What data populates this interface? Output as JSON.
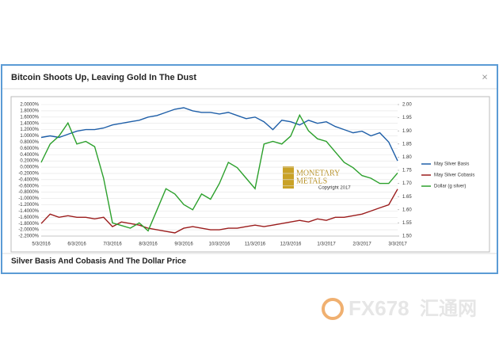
{
  "dialog": {
    "title": "Bitcoin Shoots Up, Leaving Gold In The Dust",
    "close": "×",
    "caption": "Silver Basis And Cobasis And The Dollar Price"
  },
  "logo": {
    "name": "MONETARY",
    "name2": "METALS",
    "copyright": "Copyright 2017"
  },
  "watermark": {
    "brand": "FX678",
    "cn": "汇通网"
  },
  "chart_data": {
    "type": "line",
    "categories": [
      "5/3/2016",
      null,
      null,
      null,
      "6/3/2016",
      null,
      null,
      null,
      "7/3/2016",
      null,
      null,
      null,
      "8/3/2016",
      null,
      null,
      null,
      "9/3/2016",
      null,
      null,
      null,
      "10/3/2016",
      null,
      null,
      null,
      "11/3/2016",
      null,
      null,
      null,
      "12/3/2016",
      null,
      null,
      null,
      "1/3/2017",
      null,
      null,
      null,
      "2/3/2017",
      null,
      null,
      null,
      "3/3/2017"
    ],
    "series": [
      {
        "name": "May Silver Basis",
        "color": "#1f5fa8",
        "axis": "y",
        "values": [
          0.95,
          1.0,
          0.95,
          1.05,
          1.15,
          1.2,
          1.2,
          1.25,
          1.35,
          1.4,
          1.45,
          1.5,
          1.6,
          1.65,
          1.75,
          1.85,
          1.9,
          1.8,
          1.75,
          1.75,
          1.7,
          1.75,
          1.65,
          1.55,
          1.6,
          1.45,
          1.2,
          1.5,
          1.45,
          1.35,
          1.5,
          1.4,
          1.45,
          1.3,
          1.2,
          1.1,
          1.15,
          1.0,
          1.1,
          0.8,
          0.2
        ]
      },
      {
        "name": "May Silver Cobasis",
        "color": "#9b1c1c",
        "axis": "y",
        "values": [
          -1.8,
          -1.5,
          -1.6,
          -1.55,
          -1.6,
          -1.6,
          -1.65,
          -1.6,
          -1.9,
          -1.75,
          -1.8,
          -1.85,
          -1.95,
          -2.0,
          -2.05,
          -2.1,
          -1.95,
          -1.9,
          -1.95,
          -2.0,
          -2.0,
          -1.95,
          -1.95,
          -1.9,
          -1.85,
          -1.9,
          -1.85,
          -1.8,
          -1.75,
          -1.7,
          -1.75,
          -1.65,
          -1.7,
          -1.6,
          -1.6,
          -1.55,
          -1.5,
          -1.4,
          -1.3,
          -1.2,
          -0.7
        ]
      },
      {
        "name": "Dollar (g silver)",
        "color": "#2ca02c",
        "axis": "y2",
        "values": [
          1.78,
          1.85,
          1.88,
          1.93,
          1.85,
          1.86,
          1.84,
          1.72,
          1.55,
          1.54,
          1.53,
          1.55,
          1.52,
          1.6,
          1.68,
          1.66,
          1.62,
          1.6,
          1.66,
          1.64,
          1.7,
          1.78,
          1.76,
          1.72,
          1.68,
          1.85,
          1.86,
          1.85,
          1.88,
          1.96,
          1.9,
          1.87,
          1.86,
          1.82,
          1.78,
          1.76,
          1.73,
          1.72,
          1.7,
          1.7,
          1.74
        ]
      }
    ],
    "ylim": [
      -2.2,
      2.0
    ],
    "yticks": [
      {
        "value": 2.0,
        "label": "2.0000%"
      },
      {
        "value": 1.8,
        "label": "1.8000%"
      },
      {
        "value": 1.6,
        "label": "1.6000%"
      },
      {
        "value": 1.4,
        "label": "1.4000%"
      },
      {
        "value": 1.2,
        "label": "1.2000%"
      },
      {
        "value": 1.0,
        "label": "1.0000%"
      },
      {
        "value": 0.8,
        "label": "0.8000%"
      },
      {
        "value": 0.6,
        "label": "0.6000%"
      },
      {
        "value": 0.4,
        "label": "0.4000%"
      },
      {
        "value": 0.2,
        "label": "0.2000%"
      },
      {
        "value": 0,
        "label": "0.0000%"
      },
      {
        "value": -0.2,
        "label": "-0.2000%"
      },
      {
        "value": -0.4,
        "label": "-0.4000%"
      },
      {
        "value": -0.6,
        "label": "-0.6000%"
      },
      {
        "value": -0.8,
        "label": "-0.8000%"
      },
      {
        "value": -1.0,
        "label": "-1.0000%"
      },
      {
        "value": -1.2,
        "label": "-1.2000%"
      },
      {
        "value": -1.4,
        "label": "-1.4000%"
      },
      {
        "value": -1.6,
        "label": "-1.6000%"
      },
      {
        "value": -1.8,
        "label": "-1.8000%"
      },
      {
        "value": -2.0,
        "label": "-2.0000%"
      },
      {
        "value": -2.2,
        "label": "-2.2000%"
      }
    ],
    "y2lim": [
      1.5,
      2.0
    ],
    "y2ticks": [
      {
        "value": 2.0,
        "label": "2.00"
      },
      {
        "value": 1.95,
        "label": "1.95"
      },
      {
        "value": 1.9,
        "label": "1.90"
      },
      {
        "value": 1.85,
        "label": "1.85"
      },
      {
        "value": 1.8,
        "label": "1.80"
      },
      {
        "value": 1.75,
        "label": "1.75"
      },
      {
        "value": 1.7,
        "label": "1.70"
      },
      {
        "value": 1.65,
        "label": "1.65"
      },
      {
        "value": 1.6,
        "label": "1.60"
      },
      {
        "value": 1.55,
        "label": "1.55"
      },
      {
        "value": 1.5,
        "label": "1.50"
      }
    ],
    "grid": true,
    "legend": "right"
  }
}
